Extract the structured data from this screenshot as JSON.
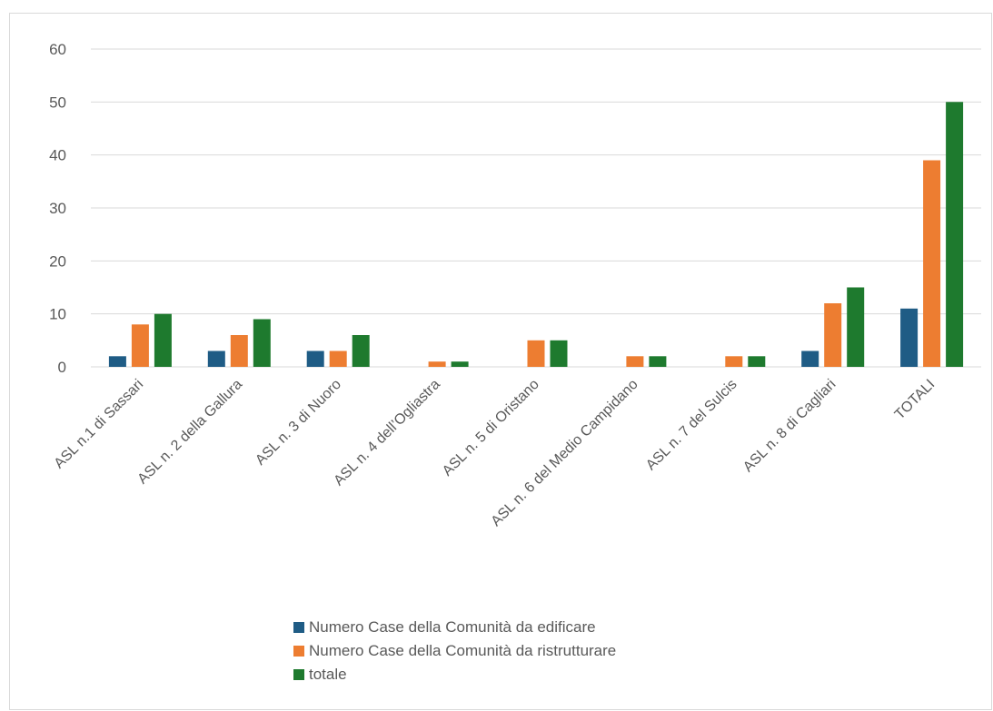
{
  "chart_data": {
    "type": "bar",
    "categories": [
      "ASL n.1 di Sassari",
      "ASL n. 2 della Gallura",
      "ASL n. 3 di Nuoro",
      "ASL n. 4 dell’Ogliastra",
      "ASL n. 5 di Oristano",
      "ASL n. 6 del Medio Campidano",
      "ASL n. 7 del Sulcis",
      "ASL n. 8 di Cagliari",
      "TOTALI"
    ],
    "series": [
      {
        "name": "Numero Case della Comunità da edificare",
        "color": "#1f5c85",
        "values": [
          2,
          3,
          3,
          0,
          0,
          0,
          0,
          3,
          11
        ]
      },
      {
        "name": "Numero Case della Comunità da ristrutturare",
        "color": "#ed7d31",
        "values": [
          8,
          6,
          3,
          1,
          5,
          2,
          2,
          12,
          39
        ]
      },
      {
        "name": "totale",
        "color": "#1e7a2e",
        "values": [
          10,
          9,
          6,
          1,
          5,
          2,
          2,
          15,
          50
        ]
      }
    ],
    "y_ticks": [
      "0",
      "10",
      "20",
      "30",
      "40",
      "50",
      "60"
    ],
    "ylim": [
      0,
      60
    ],
    "grid": true,
    "legend": "bottom"
  }
}
